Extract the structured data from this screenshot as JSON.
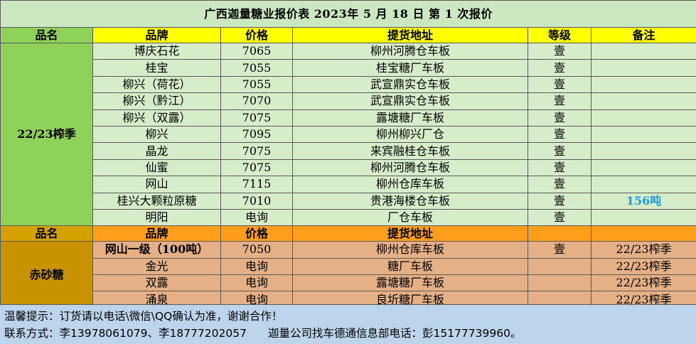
{
  "title": "广西迦量糖业报价表 2023年 5 月 18 日 第 1 次报价",
  "headers": {
    "category": "品名",
    "brand": "品牌",
    "price": "价格",
    "location": "提货地址",
    "grade": "等级",
    "remark": "备注"
  },
  "white_sugar": {
    "category": "22/23榨季",
    "rows": [
      {
        "brand": "博庆石花",
        "price": "7065",
        "location": "柳州河腾仓车板",
        "grade": "壹",
        "remark": ""
      },
      {
        "brand": "桂宝",
        "price": "7055",
        "location": "桂宝糖厂车板",
        "grade": "壹",
        "remark": ""
      },
      {
        "brand": "柳兴（荷花）",
        "price": "7055",
        "location": "武宣鼎实仓车板",
        "grade": "壹",
        "remark": ""
      },
      {
        "brand": "柳兴（黔江）",
        "price": "7070",
        "location": "武宣鼎实仓车板",
        "grade": "壹",
        "remark": ""
      },
      {
        "brand": "柳兴（双露）",
        "price": "7075",
        "location": "露塘糖厂车板",
        "grade": "壹",
        "remark": ""
      },
      {
        "brand": "柳兴",
        "price": "7095",
        "location": "柳州柳兴厂仓",
        "grade": "壹",
        "remark": ""
      },
      {
        "brand": "晶龙",
        "price": "7075",
        "location": "来宾融桂仓车板",
        "grade": "壹",
        "remark": ""
      },
      {
        "brand": "仙蜜",
        "price": "7075",
        "location": "柳州河腾仓车板",
        "grade": "壹",
        "remark": ""
      },
      {
        "brand": "网山",
        "price": "7115",
        "location": "柳州仓库车板",
        "grade": "壹",
        "remark": ""
      },
      {
        "brand": "桂兴大颗粒原糖",
        "price": "7010",
        "location": "贵港海楼仓车板",
        "grade": "壹",
        "remark": "156吨"
      },
      {
        "brand": "明阳",
        "price": "电询",
        "location": "厂仓车板",
        "grade": "壹",
        "remark": ""
      }
    ]
  },
  "red_sugar": {
    "category": "赤砂糖",
    "header_category": "品名",
    "header_brand": "品牌",
    "header_price": "价格",
    "header_location": "提货地址",
    "rows": [
      {
        "brand": "网山一级（100吨）",
        "price": "7050",
        "location": "柳州仓库车板",
        "grade": "壹",
        "remark": "22/23榨季"
      },
      {
        "brand": "金光",
        "price": "电询",
        "location": "糖厂车板",
        "grade": "",
        "remark": "22/23榨季"
      },
      {
        "brand": "双露",
        "price": "电询",
        "location": "露塘糖厂车板",
        "grade": "",
        "remark": "22/23榨季"
      },
      {
        "brand": "涌泉",
        "price": "电询",
        "location": "良圻糖厂车板",
        "grade": "",
        "remark": "22/23榨季"
      }
    ]
  },
  "footer": {
    "tip": "温馨提示：订货请以电话\\微信\\QQ确认为准，谢谢合作！",
    "contact": "联系方式：李13978061079、李18777202057",
    "dept": "迦量公司找车德通信息部电话：彭15177739960。"
  }
}
